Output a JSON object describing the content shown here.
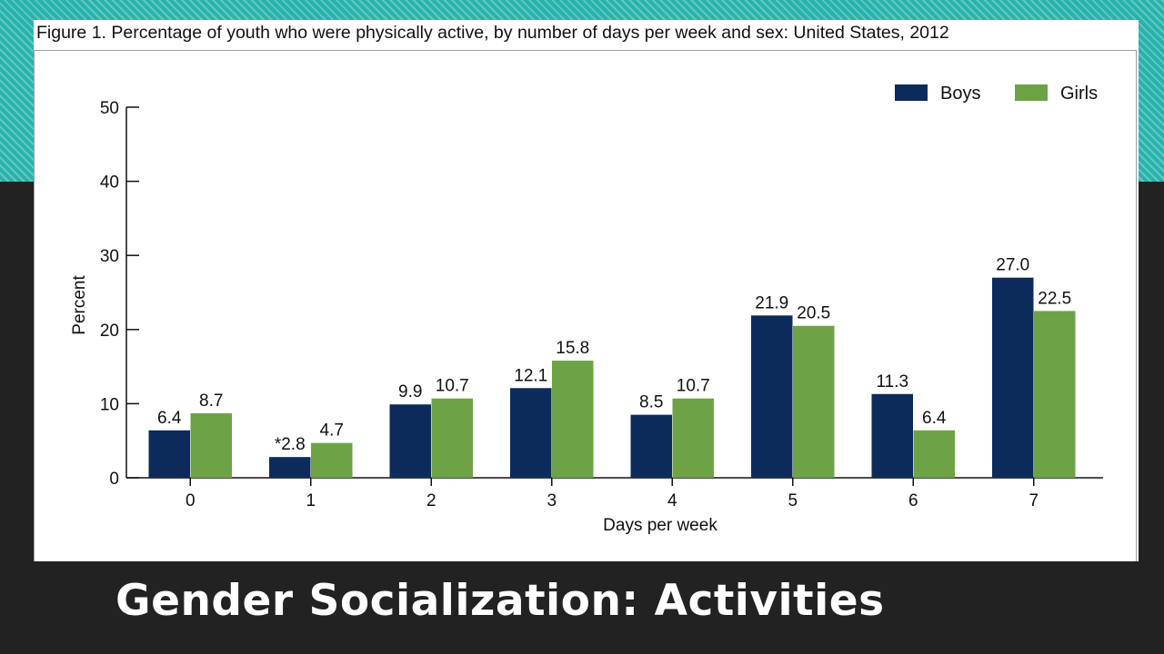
{
  "slide": {
    "title": "Gender Socialization: Activities"
  },
  "colors": {
    "boys": "#0d2b5a",
    "girls": "#6ea246",
    "teal_band": "#27b3ab",
    "background": "#222222"
  },
  "chart_data": {
    "type": "bar",
    "title": "Figure 1. Percentage of youth who were physically active, by number of days per week and sex: United States, 2012",
    "xlabel": "Days per week",
    "ylabel": "Percent",
    "categories": [
      "0",
      "1",
      "2",
      "3",
      "4",
      "5",
      "6",
      "7"
    ],
    "series": [
      {
        "name": "Boys",
        "values": [
          6.4,
          2.8,
          9.9,
          12.1,
          8.5,
          21.9,
          11.3,
          27.0
        ]
      },
      {
        "name": "Girls",
        "values": [
          8.7,
          4.7,
          10.7,
          15.8,
          10.7,
          20.5,
          6.4,
          22.5
        ]
      }
    ],
    "data_labels": [
      [
        "6.4",
        "*2.8",
        "9.9",
        "12.1",
        "8.5",
        "21.9",
        "11.3",
        "27.0"
      ],
      [
        "8.7",
        "4.7",
        "10.7",
        "15.8",
        "10.7",
        "20.5",
        "6.4",
        "22.5"
      ]
    ],
    "ylim": [
      0,
      50
    ],
    "yticks": [
      0,
      10,
      20,
      30,
      40,
      50
    ],
    "grid": false,
    "legend": "top-right"
  }
}
